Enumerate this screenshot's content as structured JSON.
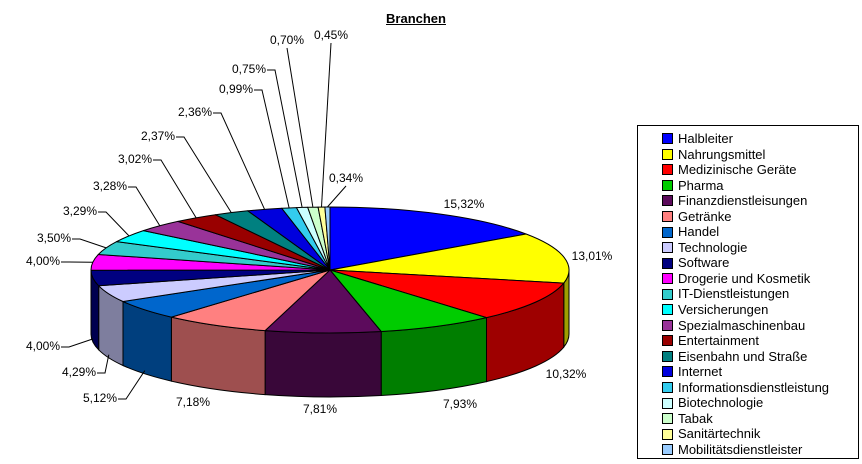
{
  "chart_data": {
    "type": "pie",
    "title": "Branchen",
    "is_3d": true,
    "start_angle_deg": 0,
    "direction": "clockwise",
    "legend_position": "right",
    "value_unit": "percent",
    "decimal_separator": ",",
    "slices": [
      {
        "label": "Halbleiter",
        "value": 15.32,
        "display": "15,32%",
        "color": "#0000FF"
      },
      {
        "label": "Nahrungsmittel",
        "value": 13.01,
        "display": "13,01%",
        "color": "#FFFF00"
      },
      {
        "label": "Medizinische Geräte",
        "value": 10.32,
        "display": "10,32%",
        "color": "#FF0000"
      },
      {
        "label": "Pharma",
        "value": 7.93,
        "display": "7,93%",
        "color": "#00CC00"
      },
      {
        "label": "Finanzdienstleisungen",
        "value": 7.81,
        "display": "7,81%",
        "color": "#5C0B5C"
      },
      {
        "label": "Getränke",
        "value": 7.18,
        "display": "7,18%",
        "color": "#FF8080"
      },
      {
        "label": "Handel",
        "value": 5.12,
        "display": "5,12%",
        "color": "#0066CC"
      },
      {
        "label": "Technologie",
        "value": 4.29,
        "display": "4,29%",
        "color": "#CCCCFF"
      },
      {
        "label": "Software",
        "value": 4.0,
        "display": "4,00%",
        "color": "#000080"
      },
      {
        "label": "Drogerie und Kosmetik",
        "value": 4.0,
        "display": "4,00%",
        "color": "#FF00FF"
      },
      {
        "label": "IT-Dienstleistungen",
        "value": 3.5,
        "display": "3,50%",
        "color": "#33CCCC"
      },
      {
        "label": "Versicherungen",
        "value": 3.29,
        "display": "3,29%",
        "color": "#00FFFF"
      },
      {
        "label": "Spezialmaschinenbau",
        "value": 3.28,
        "display": "3,28%",
        "color": "#993399"
      },
      {
        "label": "Entertainment",
        "value": 3.02,
        "display": "3,02%",
        "color": "#990000"
      },
      {
        "label": "Eisenbahn und Straße",
        "value": 2.37,
        "display": "2,37%",
        "color": "#008080"
      },
      {
        "label": "Internet",
        "value": 2.36,
        "display": "2,36%",
        "color": "#0000DD"
      },
      {
        "label": "Informationsdienstleistung",
        "value": 0.99,
        "display": "0,99%",
        "color": "#33CCEE"
      },
      {
        "label": "Biotechnologie",
        "value": 0.75,
        "display": "0,75%",
        "color": "#CCFFFF"
      },
      {
        "label": "Tabak",
        "value": 0.7,
        "display": "0,70%",
        "color": "#CCFFCC"
      },
      {
        "label": "Sanitärtechnik",
        "value": 0.45,
        "display": "0,45%",
        "color": "#FFFF99"
      },
      {
        "label": "Mobilitätsdienstleister",
        "value": 0.34,
        "display": "0,34%",
        "color": "#99CCFF"
      }
    ]
  }
}
